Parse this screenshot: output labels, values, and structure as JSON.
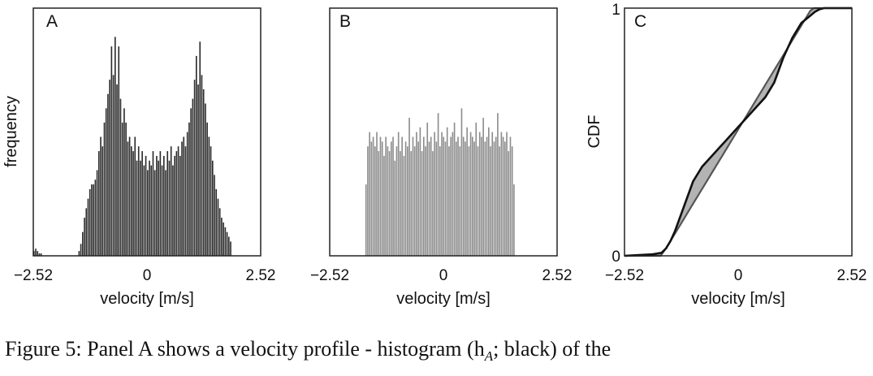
{
  "chart_data": [
    {
      "panel": "A",
      "type": "bar",
      "xlabel": "velocity [m/s]",
      "ylabel": "frequency",
      "x_ticks": [
        "−2.52",
        "0",
        "2.52"
      ],
      "xlim": [
        -2.52,
        2.52
      ],
      "ylim": [
        0,
        1
      ],
      "color": "#2b2b2b",
      "bin_start": -2.52,
      "bin_width": 0.04,
      "values": [
        0.02,
        0.03,
        0.02,
        0.01,
        0.01,
        0,
        0,
        0,
        0,
        0,
        0,
        0,
        0,
        0,
        0,
        0,
        0,
        0,
        0,
        0,
        0,
        0,
        0,
        0,
        0,
        0.02,
        0.05,
        0.1,
        0.16,
        0.2,
        0.24,
        0.28,
        0.3,
        0.3,
        0.32,
        0.36,
        0.44,
        0.5,
        0.46,
        0.56,
        0.62,
        0.68,
        0.74,
        0.88,
        0.76,
        0.92,
        0.72,
        0.88,
        0.66,
        0.56,
        0.62,
        0.56,
        0.48,
        0.5,
        0.46,
        0.44,
        0.5,
        0.4,
        0.46,
        0.4,
        0.44,
        0.38,
        0.42,
        0.36,
        0.4,
        0.38,
        0.44,
        0.36,
        0.42,
        0.4,
        0.44,
        0.38,
        0.42,
        0.36,
        0.44,
        0.4,
        0.46,
        0.38,
        0.42,
        0.44,
        0.46,
        0.42,
        0.48,
        0.5,
        0.46,
        0.52,
        0.56,
        0.62,
        0.66,
        0.74,
        0.84,
        0.72,
        0.9,
        0.76,
        0.7,
        0.64,
        0.56,
        0.5,
        0.46,
        0.4,
        0.34,
        0.28,
        0.24,
        0.2,
        0.16,
        0.14,
        0.12,
        0.1,
        0.08,
        0.06
      ]
    },
    {
      "panel": "B",
      "type": "bar",
      "xlabel": "velocity [m/s]",
      "ylabel": "",
      "x_ticks": [
        "−2.52",
        "0",
        "2.52"
      ],
      "xlim": [
        -2.52,
        2.52
      ],
      "ylim": [
        0,
        1
      ],
      "color": "#8c8c8c",
      "bin_start": -1.73,
      "bin_width": 0.04,
      "values": [
        0.3,
        0.46,
        0.52,
        0.48,
        0.5,
        0.46,
        0.52,
        0.44,
        0.5,
        0.48,
        0.42,
        0.5,
        0.46,
        0.44,
        0.48,
        0.5,
        0.4,
        0.46,
        0.52,
        0.44,
        0.5,
        0.42,
        0.48,
        0.46,
        0.58,
        0.44,
        0.5,
        0.46,
        0.52,
        0.48,
        0.54,
        0.44,
        0.5,
        0.46,
        0.56,
        0.48,
        0.5,
        0.44,
        0.52,
        0.48,
        0.6,
        0.46,
        0.52,
        0.5,
        0.48,
        0.54,
        0.46,
        0.5,
        0.52,
        0.56,
        0.48,
        0.5,
        0.46,
        0.62,
        0.5,
        0.48,
        0.54,
        0.46,
        0.52,
        0.5,
        0.48,
        0.56,
        0.46,
        0.52,
        0.5,
        0.58,
        0.48,
        0.5,
        0.54,
        0.46,
        0.52,
        0.48,
        0.5,
        0.6,
        0.46,
        0.52,
        0.5,
        0.48,
        0.52,
        0.44,
        0.5,
        0.46,
        0.3
      ]
    },
    {
      "panel": "C",
      "type": "line",
      "xlabel": "velocity [m/s]",
      "ylabel": "CDF",
      "x_ticks": [
        "−2.52",
        "0",
        "2.52"
      ],
      "y_ticks": [
        "0",
        "1"
      ],
      "xlim": [
        -2.52,
        2.52
      ],
      "ylim": [
        0,
        1
      ],
      "fill_between": true,
      "fill_color": "#b3b3b3",
      "series": [
        {
          "color": "#111111",
          "x": [
            -2.52,
            -2.2,
            -1.9,
            -1.7,
            -1.6,
            -1.5,
            -1.4,
            -1.2,
            -1.0,
            -0.8,
            -0.6,
            -0.4,
            -0.2,
            0,
            0.2,
            0.4,
            0.6,
            0.8,
            1.0,
            1.2,
            1.4,
            1.6,
            1.7,
            1.8,
            1.9,
            2.0,
            2.2,
            2.52
          ],
          "y": [
            0,
            0.003,
            0.006,
            0.012,
            0.03,
            0.06,
            0.1,
            0.2,
            0.3,
            0.36,
            0.4,
            0.44,
            0.48,
            0.52,
            0.56,
            0.6,
            0.64,
            0.7,
            0.8,
            0.88,
            0.94,
            0.97,
            0.985,
            0.995,
            1,
            1,
            1,
            1
          ]
        },
        {
          "color": "#555555",
          "x": [
            -2.52,
            -2.2,
            -1.9,
            -1.72,
            -1.6,
            -1.4,
            -1.2,
            -1.0,
            -0.8,
            -0.6,
            -0.4,
            -0.2,
            0,
            0.2,
            0.4,
            0.6,
            0.8,
            1.0,
            1.2,
            1.4,
            1.6,
            1.68,
            1.72,
            2.52
          ],
          "y": [
            0,
            0,
            0,
            0,
            0.03,
            0.09,
            0.15,
            0.21,
            0.27,
            0.33,
            0.39,
            0.45,
            0.51,
            0.57,
            0.63,
            0.69,
            0.75,
            0.81,
            0.87,
            0.93,
            0.99,
            1,
            1,
            1
          ]
        }
      ]
    }
  ],
  "caption": "Figure 5:  Panel A shows a velocity profile - histogram (h",
  "caption_sub": "A",
  "caption_tail": "; black) of the"
}
